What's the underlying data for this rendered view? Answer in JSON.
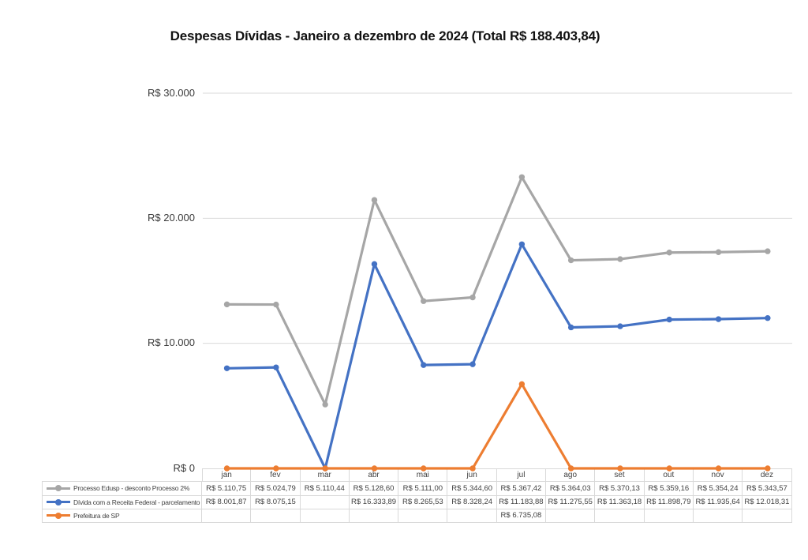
{
  "title": "Despesas Dívidas - Janeiro a dezembro de 2024 (Total R$ 188.403,84)",
  "chart_data": {
    "type": "line",
    "stacked": true,
    "grid": true,
    "gridline_color": "#d9d9d9",
    "legend_position": "table-left",
    "categories": [
      "jan",
      "fev",
      "mar",
      "abr",
      "mai",
      "jun",
      "jul",
      "ago",
      "set",
      "out",
      "nov",
      "dez"
    ],
    "y_axis": {
      "min": 0,
      "max": 30000,
      "ticks": [
        {
          "value": 30000,
          "label": "R$ 30.000"
        },
        {
          "value": 20000,
          "label": "R$ 20.000"
        },
        {
          "value": 10000,
          "label": "R$ 10.000"
        },
        {
          "value": 0,
          "label": "R$ 0"
        }
      ]
    },
    "series": [
      {
        "name": "Processo Edusp - desconto Processo 2%",
        "color": "#a6a6a6",
        "values": [
          5110.75,
          5024.79,
          5110.44,
          5128.6,
          5111.0,
          5344.6,
          5367.42,
          5364.03,
          5370.13,
          5359.16,
          5354.24,
          5343.57
        ],
        "labels": [
          "R$ 5.110,75",
          "R$ 5.024,79",
          "R$ 5.110,44",
          "R$ 5.128,60",
          "R$ 5.111,00",
          "R$ 5.344,60",
          "R$ 5.367,42",
          "R$ 5.364,03",
          "R$ 5.370,13",
          "R$ 5.359,16",
          "R$ 5.354,24",
          "R$ 5.343,57"
        ]
      },
      {
        "name": "Dívida com a Receita Federal - parcelamento",
        "color": "#4472c4",
        "values": [
          8001.87,
          8075.15,
          null,
          16333.89,
          8265.53,
          8328.24,
          11183.88,
          11275.55,
          11363.18,
          11898.79,
          11935.64,
          12018.31
        ],
        "labels": [
          "R$ 8.001,87",
          "R$ 8.075,15",
          "",
          "R$ 16.333,89",
          "R$ 8.265,53",
          "R$ 8.328,24",
          "R$ 11.183,88",
          "R$ 11.275,55",
          "R$ 11.363,18",
          "R$ 11.898,79",
          "R$ 11.935,64",
          "R$ 12.018,31"
        ]
      },
      {
        "name": "Prefeitura de SP",
        "color": "#ed7d31",
        "values": [
          null,
          null,
          null,
          null,
          null,
          null,
          6735.08,
          null,
          null,
          null,
          null,
          null
        ],
        "labels": [
          "",
          "",
          "",
          "",
          "",
          "",
          "R$ 6.735,08",
          "",
          "",
          "",
          "",
          ""
        ]
      }
    ]
  }
}
